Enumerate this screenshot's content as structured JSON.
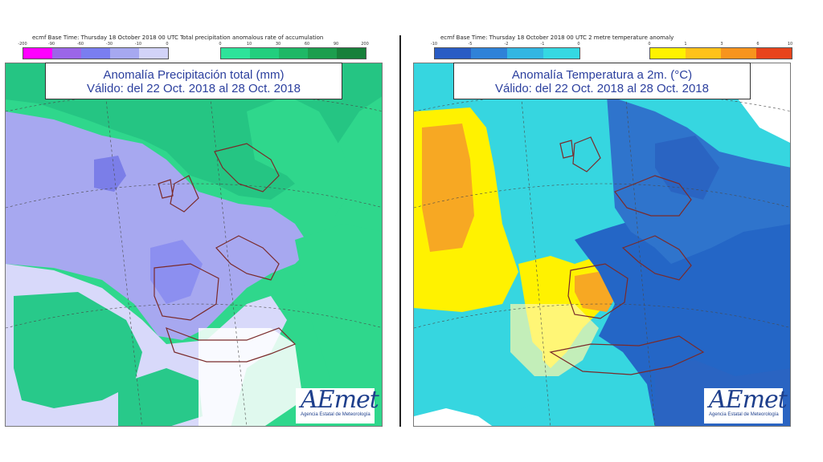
{
  "panels": [
    {
      "header": "ecmf  Base Time: Thursday 18 October 2018 00 UTC Total precipitation anomalous rate of accumulation",
      "title_line1": "Anomalía Precipitación total (mm)",
      "title_line2": "Válido: del 22 Oct. 2018 al 28 Oct. 2018",
      "scale_negative": {
        "ticks": [
          "-200",
          "-90",
          "-60",
          "-30",
          "-10",
          "0"
        ],
        "colors": [
          "#ff00ff",
          "#9b66e8",
          "#7a7ef0",
          "#a6a8f0",
          "#d2d3f8"
        ]
      },
      "scale_positive": {
        "ticks": [
          "0",
          "10",
          "30",
          "60",
          "90",
          "200"
        ],
        "colors": [
          "#2ee39a",
          "#22cf7e",
          "#1eb866",
          "#1c9e4e",
          "#17803a"
        ]
      },
      "logo_mark": "AEmet",
      "logo_sub": "Agencia Estatal de Meteorología"
    },
    {
      "header": "ecmf  Base Time: Thursday 18 October 2018 00 UTC 2 metre temperature anomaly",
      "title_line1": "Anomalía Temperatura a 2m. (°C)",
      "title_line2": "Válido: del 22 Oct. 2018 al 28 Oct. 2018",
      "scale_negative": {
        "ticks": [
          "-10",
          "-5",
          "-2",
          "-1",
          "0"
        ],
        "colors": [
          "#2a5cc4",
          "#2f82d8",
          "#33b6e2",
          "#35d8e2"
        ]
      },
      "scale_positive": {
        "ticks": [
          "0",
          "1",
          "3",
          "6",
          "10"
        ],
        "colors": [
          "#fff200",
          "#ffc21a",
          "#f7941d",
          "#e8441c"
        ]
      },
      "logo_mark": "AEmet",
      "logo_sub": "Agencia Estatal de Meteorología"
    }
  ]
}
